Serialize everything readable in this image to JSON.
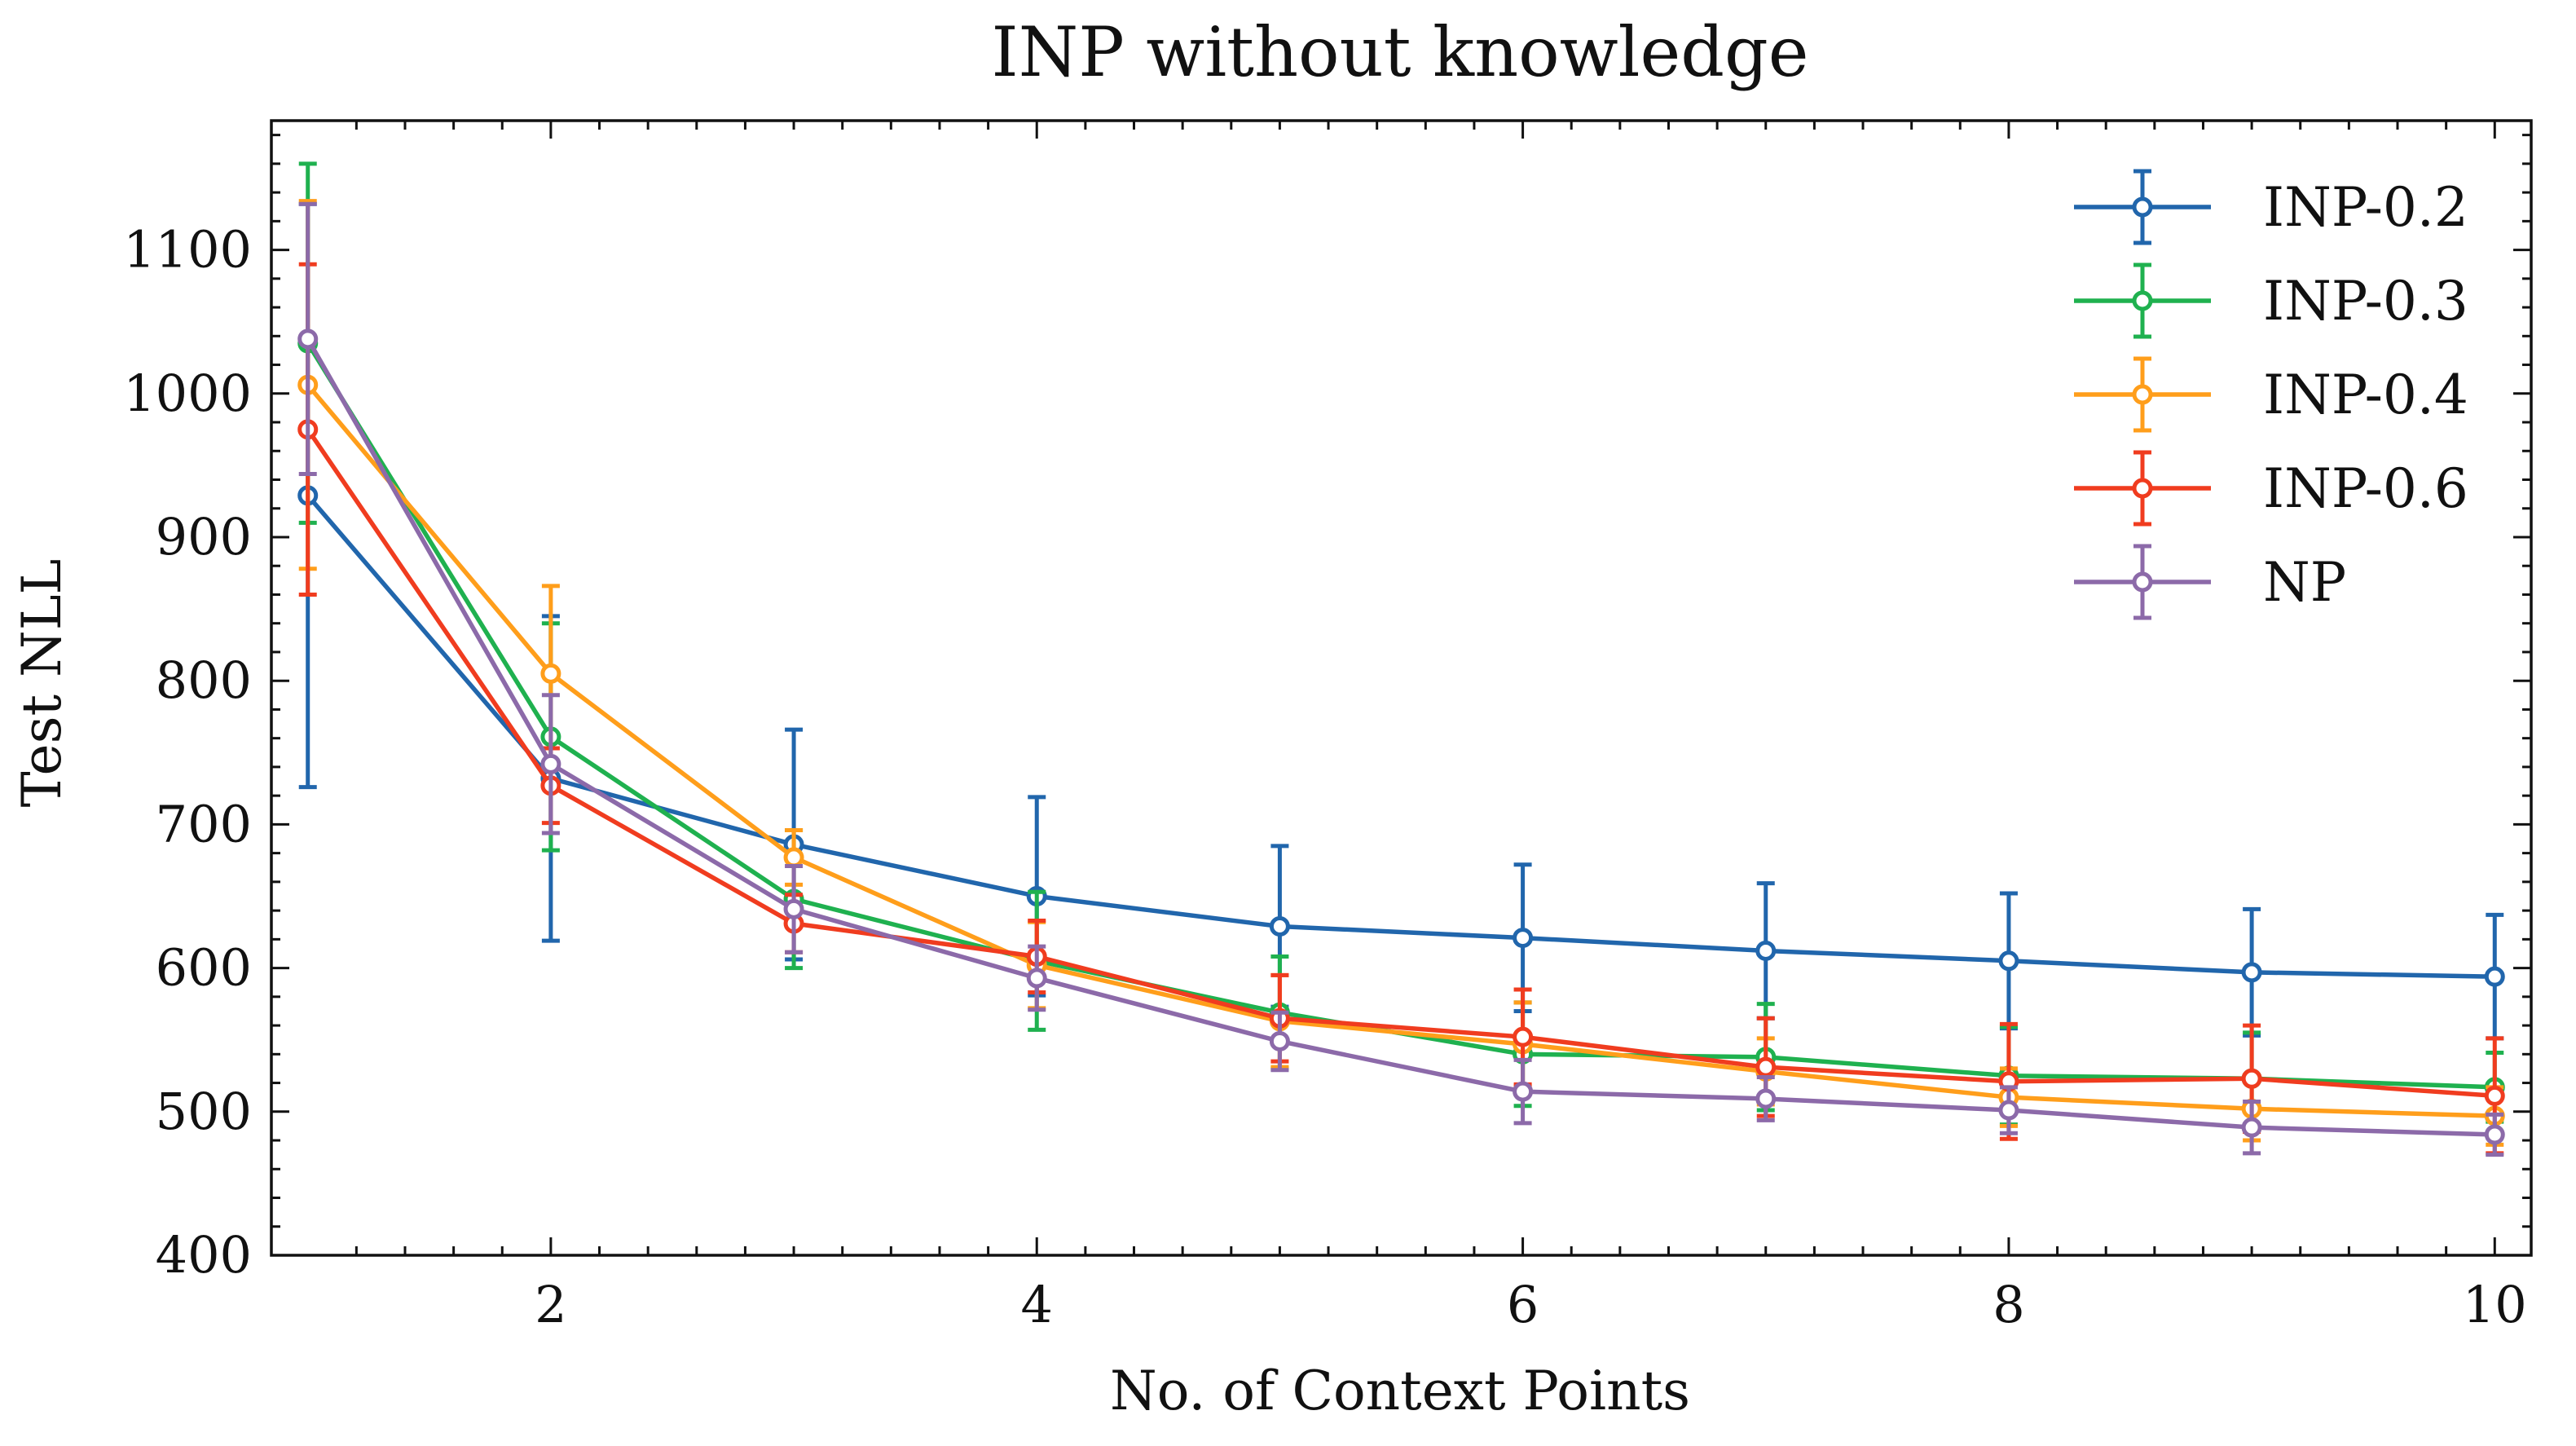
{
  "chart_data": {
    "type": "line",
    "title": "INP without knowledge",
    "xlabel": "No. of Context Points",
    "ylabel": "Test NLL",
    "xlim": [
      0.85,
      10.15
    ],
    "ylim": [
      400,
      1190
    ],
    "xticks": [
      2,
      4,
      6,
      8,
      10
    ],
    "yticks": [
      400,
      500,
      600,
      700,
      800,
      900,
      1000,
      1100
    ],
    "grid": false,
    "legend_position": "top-right",
    "x": [
      1,
      2,
      3,
      4,
      5,
      6,
      7,
      8,
      9,
      10
    ],
    "series": [
      {
        "name": "INP-0.2",
        "color": "#2166ac",
        "values": [
          929,
          732,
          686,
          650,
          629,
          621,
          612,
          605,
          597,
          594
        ],
        "errors": [
          203,
          113,
          80,
          69,
          56,
          51,
          47,
          47,
          44,
          43
        ]
      },
      {
        "name": "INP-0.3",
        "color": "#1fb14f",
        "values": [
          1035,
          761,
          648,
          605,
          569,
          540,
          538,
          525,
          523,
          517
        ],
        "errors": [
          125,
          79,
          48,
          48,
          39,
          36,
          37,
          34,
          32,
          24
        ]
      },
      {
        "name": "INP-0.4",
        "color": "#ff9e1b",
        "values": [
          1006,
          805,
          677,
          602,
          563,
          547,
          528,
          510,
          502,
          497
        ],
        "errors": [
          128,
          61,
          19,
          30,
          32,
          29,
          23,
          20,
          22,
          20
        ]
      },
      {
        "name": "INP-0.6",
        "color": "#f03c1f",
        "values": [
          975,
          727,
          631,
          608,
          565,
          552,
          531,
          521,
          523,
          511
        ],
        "errors": [
          115,
          26,
          20,
          25,
          30,
          33,
          34,
          40,
          37,
          40
        ]
      },
      {
        "name": "NP",
        "color": "#8c6aa9",
        "values": [
          1038,
          742,
          641,
          593,
          549,
          514,
          509,
          501,
          489,
          484
        ],
        "errors": [
          94,
          48,
          30,
          22,
          20,
          22,
          15,
          16,
          18,
          14
        ]
      }
    ]
  }
}
